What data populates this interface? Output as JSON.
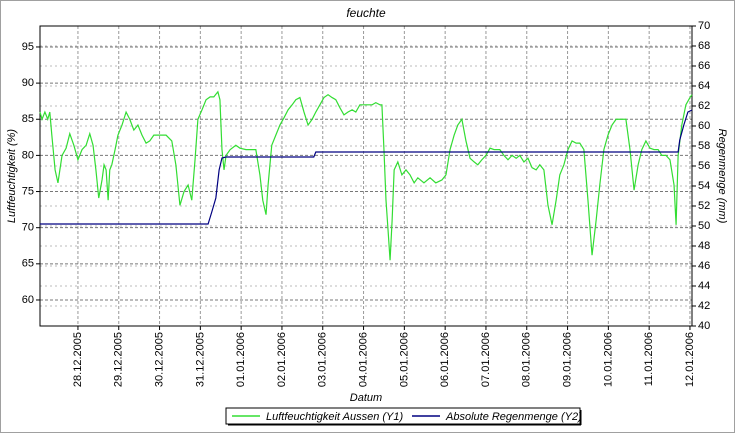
{
  "chart_data": {
    "type": "line",
    "title": "feuchte",
    "xlabel": "Datum",
    "ylabel": "Luftfeuchtigkeit (%)",
    "y2label": "Regenmenge (mm)",
    "xlim": [
      -0.93,
      15.05
    ],
    "ylim": [
      56.4,
      97.9
    ],
    "y2lim": [
      40,
      70
    ],
    "xticks": [
      {
        "value": 0,
        "label": "28.12.2005"
      },
      {
        "value": 1,
        "label": "29.12.2005"
      },
      {
        "value": 2,
        "label": "30.12.2005"
      },
      {
        "value": 3,
        "label": "31.12.2005"
      },
      {
        "value": 4,
        "label": "01.01.2006"
      },
      {
        "value": 5,
        "label": "02.01.2006"
      },
      {
        "value": 6,
        "label": "03.01.2006"
      },
      {
        "value": 7,
        "label": "04.01.2006"
      },
      {
        "value": 8,
        "label": "05.01.2006"
      },
      {
        "value": 9,
        "label": "06.01.2006"
      },
      {
        "value": 10,
        "label": "07.01.2006"
      },
      {
        "value": 11,
        "label": "08.01.2006"
      },
      {
        "value": 12,
        "label": "09.01.2006"
      },
      {
        "value": 13,
        "label": "10.01.2006"
      },
      {
        "value": 14,
        "label": "11.01.2006"
      },
      {
        "value": 15,
        "label": "12.01.2006"
      }
    ],
    "yticks": [
      60,
      65,
      70,
      75,
      80,
      85,
      90,
      95
    ],
    "y2ticks": [
      40,
      42,
      44,
      46,
      48,
      50,
      52,
      54,
      56,
      58,
      60,
      62,
      64,
      66,
      68,
      70
    ],
    "grid": true,
    "legend": "bottom",
    "series": [
      {
        "name": "Luftfeuchtigkeit Aussen (Y1)",
        "color": "#33dd33",
        "axis": "y",
        "x": [
          -0.93,
          -0.88,
          -0.81,
          -0.74,
          -0.69,
          -0.64,
          -0.56,
          -0.49,
          -0.39,
          -0.29,
          -0.2,
          -0.1,
          0,
          0.1,
          0.2,
          0.29,
          0.37,
          0.44,
          0.51,
          0.59,
          0.64,
          0.69,
          0.74,
          0.78,
          0.83,
          0.91,
          0.98,
          1.08,
          1.18,
          1.27,
          1.37,
          1.47,
          1.57,
          1.67,
          1.76,
          1.86,
          2.01,
          2.16,
          2.3,
          2.4,
          2.5,
          2.6,
          2.7,
          2.79,
          2.87,
          2.94,
          3.04,
          3.14,
          3.24,
          3.33,
          3.43,
          3.48,
          3.53,
          3.58,
          3.63,
          3.73,
          3.87,
          3.97,
          4.12,
          4.26,
          4.36,
          4.46,
          4.53,
          4.61,
          4.66,
          4.75,
          4.85,
          4.95,
          5.05,
          5.15,
          5.25,
          5.34,
          5.44,
          5.54,
          5.64,
          5.74,
          5.83,
          5.93,
          6.03,
          6.13,
          6.23,
          6.32,
          6.42,
          6.52,
          6.62,
          6.72,
          6.81,
          6.91,
          7.01,
          7.11,
          7.21,
          7.3,
          7.4,
          7.45,
          7.5,
          7.55,
          7.6,
          7.65,
          7.7,
          7.75,
          7.84,
          7.94,
          8.04,
          8.14,
          8.24,
          8.33,
          8.48,
          8.63,
          8.77,
          8.92,
          9.02,
          9.12,
          9.22,
          9.31,
          9.41,
          9.51,
          9.61,
          9.71,
          9.8,
          9.9,
          10,
          10.1,
          10.2,
          10.34,
          10.44,
          10.54,
          10.64,
          10.74,
          10.83,
          10.93,
          11.03,
          11.13,
          11.23,
          11.32,
          11.42,
          11.52,
          11.62,
          11.72,
          11.81,
          11.91,
          12.01,
          12.11,
          12.21,
          12.3,
          12.4,
          12.5,
          12.6,
          12.7,
          12.79,
          12.89,
          12.99,
          13.09,
          13.19,
          13.28,
          13.43,
          13.53,
          13.63,
          13.73,
          13.82,
          13.92,
          14.02,
          14.12,
          14.22,
          14.31,
          14.41,
          14.51,
          14.61,
          14.66,
          14.71,
          14.8,
          14.9,
          15,
          15.05
        ],
        "values": [
          86,
          85,
          86,
          85,
          86,
          82.8,
          78,
          76.2,
          80,
          81,
          83,
          81.4,
          79.4,
          80.8,
          81.4,
          83,
          81.4,
          78,
          74.1,
          76.6,
          78.7,
          78,
          73.8,
          78,
          78.7,
          80.8,
          82.8,
          84.2,
          86,
          85,
          83.5,
          84.2,
          82.8,
          81.7,
          82,
          82.8,
          82.8,
          82.8,
          82,
          78.7,
          73.1,
          75,
          75.9,
          73.8,
          79.4,
          85,
          86.3,
          87.7,
          88.1,
          88.1,
          88.8,
          87.7,
          80.8,
          78,
          80,
          80.8,
          81.4,
          81,
          80.8,
          80.8,
          80.8,
          77.3,
          73.8,
          71.8,
          75.9,
          81.4,
          82.8,
          84.2,
          85.2,
          86.3,
          87,
          87.7,
          88,
          86,
          84.2,
          85,
          86,
          87,
          88,
          88.4,
          88,
          87.7,
          86.6,
          85.6,
          86,
          86.3,
          86,
          87,
          87,
          87,
          87,
          87.3,
          87,
          87,
          80.8,
          73.8,
          69.7,
          65.5,
          71,
          78,
          79.1,
          77.3,
          78,
          77.3,
          76.2,
          76.9,
          76.2,
          76.9,
          76.2,
          76.6,
          77.3,
          80.8,
          82.8,
          84.2,
          85,
          82,
          79.6,
          79.1,
          78.7,
          79.4,
          80,
          81,
          80.8,
          80.8,
          80,
          79.4,
          80,
          79.6,
          80,
          79.1,
          79.6,
          78.3,
          78,
          78.7,
          78,
          73.1,
          70.4,
          73.8,
          77.3,
          78.7,
          80.8,
          82,
          81.7,
          81.7,
          80.8,
          73.8,
          66.2,
          71,
          75.9,
          80.8,
          82.8,
          84.2,
          85,
          85,
          85,
          80.8,
          75.2,
          78.7,
          80.8,
          82,
          81,
          80.8,
          80.8,
          80,
          80,
          79.4,
          75.9,
          70.4,
          80,
          84.2,
          87,
          88,
          88.4
        ]
      },
      {
        "name": "Absolute Regenmenge (Y2)",
        "color": "#000080",
        "axis": "y2",
        "x": [
          -0.93,
          3.19,
          3.28,
          3.38,
          3.46,
          3.53,
          3.63,
          5.78,
          5.83,
          14.71,
          14.75,
          14.85,
          14.95,
          15.05
        ],
        "values": [
          50.2,
          50.2,
          51.4,
          52.8,
          55.6,
          56.8,
          56.9,
          56.9,
          57.4,
          57.4,
          58.6,
          60.1,
          61.4,
          61.6
        ]
      }
    ]
  }
}
